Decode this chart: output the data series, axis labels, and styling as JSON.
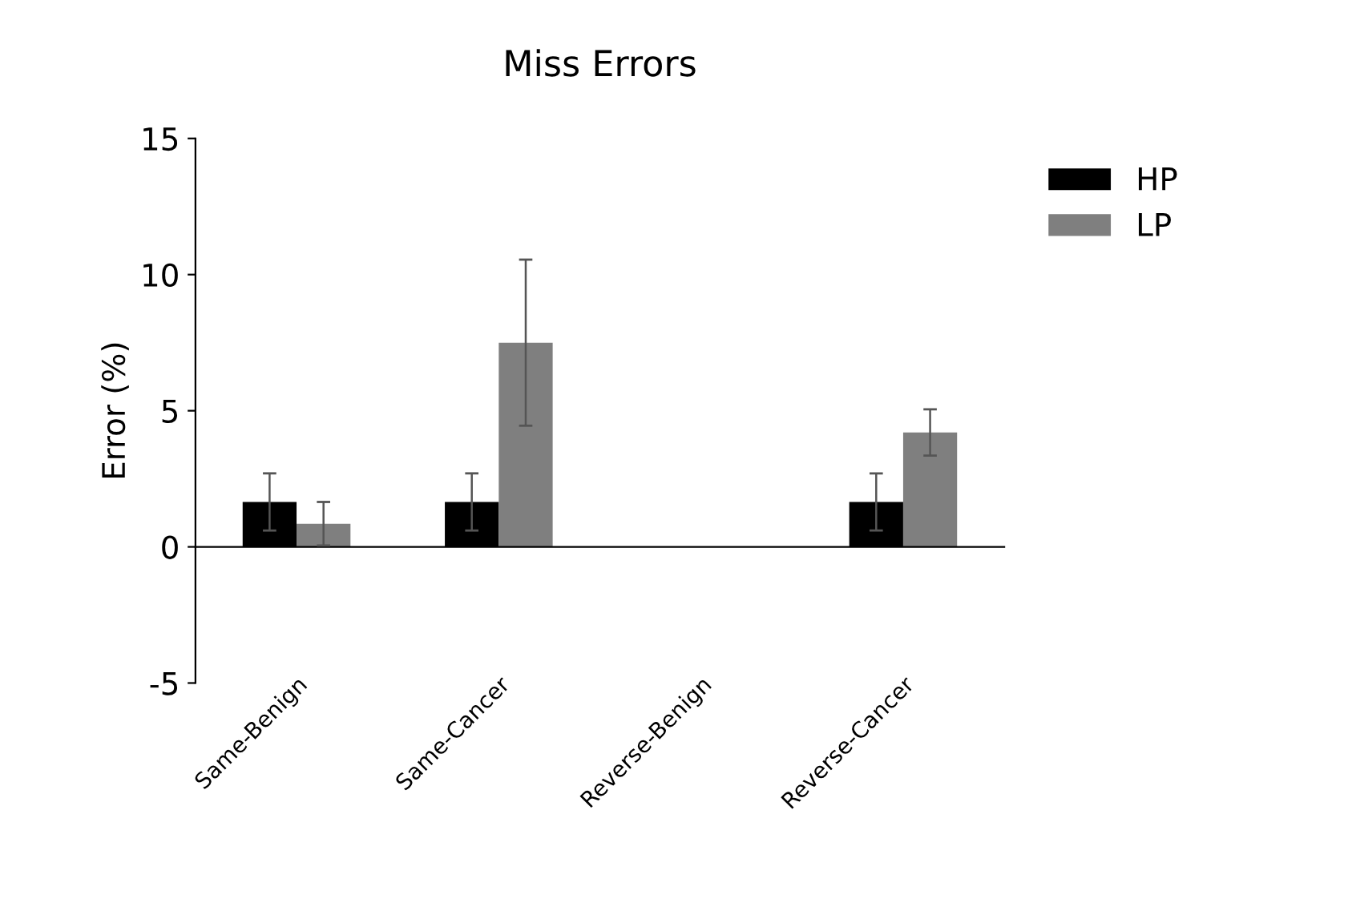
{
  "chart_data": {
    "type": "bar",
    "title": "Miss Errors",
    "ylabel": "Error (%)",
    "categories": [
      "Same-Benign",
      "Same-Cancer",
      "Reverse-Benign",
      "Reverse-Cancer"
    ],
    "series": [
      {
        "name": "HP",
        "color": "#000000",
        "values": [
          1.65,
          1.65,
          0,
          1.65
        ],
        "errors": [
          1.05,
          1.05,
          null,
          1.05
        ]
      },
      {
        "name": "LP",
        "color": "#7f7f7f",
        "values": [
          0.85,
          7.5,
          0,
          4.2
        ],
        "errors": [
          0.8,
          3.05,
          null,
          0.85
        ]
      }
    ],
    "ylim": [
      -5,
      15
    ],
    "yticks": [
      -5,
      0,
      5,
      10,
      15
    ],
    "legend": "top right"
  }
}
